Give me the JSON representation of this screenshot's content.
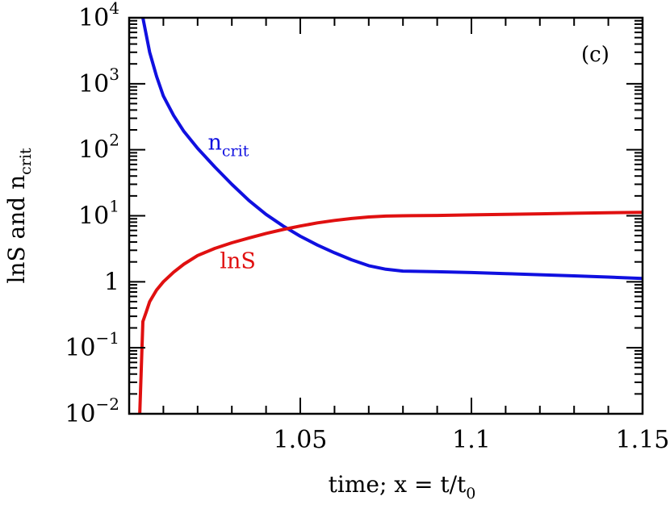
{
  "chart_data": {
    "type": "line",
    "panel_label": "(c)",
    "xlabel": {
      "prefix": "time;  x  =  t/t",
      "sub": "0"
    },
    "ylabel": {
      "prefix": "lnS and n",
      "sub": "crit"
    },
    "xlim": [
      1.0,
      1.15
    ],
    "ylim": [
      0.01,
      10000
    ],
    "yscale": "log",
    "x_ticks": [
      {
        "value": 1.05,
        "label": "1.05"
      },
      {
        "value": 1.1,
        "label": "1.1"
      },
      {
        "value": 1.15,
        "label": "1.15"
      }
    ],
    "y_ticks": [
      {
        "value": 0.01,
        "base": "10",
        "exp": "−2"
      },
      {
        "value": 0.1,
        "base": "10",
        "exp": "−1"
      },
      {
        "value": 1,
        "base": "1",
        "exp": ""
      },
      {
        "value": 10,
        "base": "10",
        "exp": "1"
      },
      {
        "value": 100,
        "base": "10",
        "exp": "2"
      },
      {
        "value": 1000,
        "base": "10",
        "exp": "3"
      },
      {
        "value": 10000,
        "base": "10",
        "exp": "4"
      }
    ],
    "series": [
      {
        "name": "n",
        "name_sub": "crit",
        "color": "#1010e0",
        "label_at": {
          "x": 1.023,
          "y": 100
        },
        "points": [
          [
            1.004,
            10000
          ],
          [
            1.006,
            3000
          ],
          [
            1.008,
            1300
          ],
          [
            1.01,
            650
          ],
          [
            1.013,
            330
          ],
          [
            1.016,
            190
          ],
          [
            1.02,
            105
          ],
          [
            1.025,
            55
          ],
          [
            1.03,
            30
          ],
          [
            1.035,
            17
          ],
          [
            1.04,
            10.5
          ],
          [
            1.045,
            7.0
          ],
          [
            1.05,
            4.9
          ],
          [
            1.055,
            3.6
          ],
          [
            1.06,
            2.75
          ],
          [
            1.065,
            2.15
          ],
          [
            1.07,
            1.75
          ],
          [
            1.075,
            1.55
          ],
          [
            1.08,
            1.45
          ],
          [
            1.09,
            1.42
          ],
          [
            1.1,
            1.38
          ],
          [
            1.11,
            1.33
          ],
          [
            1.12,
            1.28
          ],
          [
            1.13,
            1.23
          ],
          [
            1.14,
            1.18
          ],
          [
            1.15,
            1.12
          ]
        ]
      },
      {
        "name": "lnS",
        "name_sub": "",
        "color": "#e01010",
        "label_at": {
          "x": 1.0265,
          "y": 1.6
        },
        "points": [
          [
            1.003,
            0.007
          ],
          [
            1.0035,
            0.04
          ],
          [
            1.004,
            0.25
          ],
          [
            1.005,
            0.35
          ],
          [
            1.006,
            0.5
          ],
          [
            1.008,
            0.75
          ],
          [
            1.01,
            1.0
          ],
          [
            1.013,
            1.4
          ],
          [
            1.016,
            1.85
          ],
          [
            1.02,
            2.5
          ],
          [
            1.025,
            3.2
          ],
          [
            1.03,
            3.9
          ],
          [
            1.035,
            4.6
          ],
          [
            1.04,
            5.4
          ],
          [
            1.045,
            6.2
          ],
          [
            1.05,
            7.0
          ],
          [
            1.055,
            7.8
          ],
          [
            1.06,
            8.5
          ],
          [
            1.065,
            9.1
          ],
          [
            1.07,
            9.6
          ],
          [
            1.075,
            9.9
          ],
          [
            1.08,
            10.0
          ],
          [
            1.09,
            10.1
          ],
          [
            1.1,
            10.3
          ],
          [
            1.11,
            10.5
          ],
          [
            1.12,
            10.7
          ],
          [
            1.13,
            10.9
          ],
          [
            1.14,
            11.1
          ],
          [
            1.15,
            11.3
          ]
        ]
      }
    ]
  }
}
